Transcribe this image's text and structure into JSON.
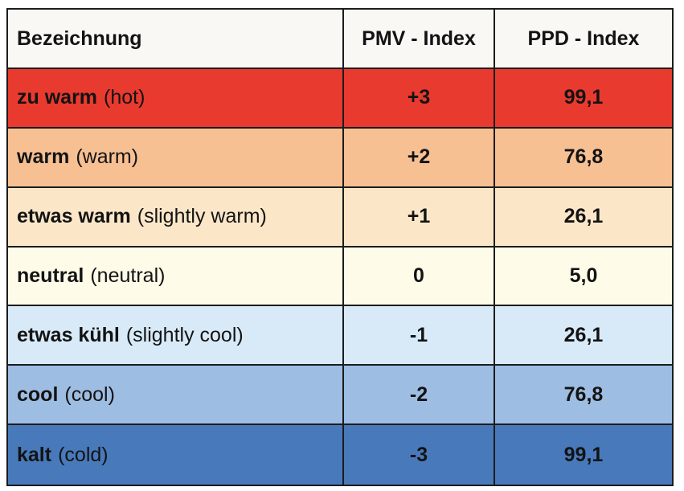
{
  "table": {
    "headers": {
      "name": "Bezeichnung",
      "pmv": "PMV - Index",
      "ppd": "PPD - Index"
    },
    "rows": [
      {
        "term": "zu warm",
        "translation": "(hot)",
        "pmv": "+3",
        "ppd": "99,1",
        "bg": "#e83a2e"
      },
      {
        "term": "warm",
        "translation": "(warm)",
        "pmv": "+2",
        "ppd": "76,8",
        "bg": "#f7c093"
      },
      {
        "term": "etwas warm",
        "translation": "(slightly warm)",
        "pmv": "+1",
        "ppd": "26,1",
        "bg": "#fbe7c8"
      },
      {
        "term": "neutral",
        "translation": "(neutral)",
        "pmv": "0",
        "ppd": "5,0",
        "bg": "#fefbe9"
      },
      {
        "term": "etwas kühl",
        "translation": "(slightly cool)",
        "pmv": "-1",
        "ppd": "26,1",
        "bg": "#d8eaf8"
      },
      {
        "term": "cool",
        "translation": "(cool)",
        "pmv": "-2",
        "ppd": "76,8",
        "bg": "#9dbde2"
      },
      {
        "term": "kalt",
        "translation": "(cold)",
        "pmv": "-3",
        "ppd": "99,1",
        "bg": "#4879bb"
      }
    ],
    "colors": {
      "border": "#1c1c1c",
      "header_bg": "#f9f8f5",
      "text": "#131313"
    }
  },
  "chart_data": {
    "type": "table",
    "columns": [
      "Bezeichnung",
      "PMV - Index",
      "PPD - Index"
    ],
    "rows": [
      [
        "zu warm (hot)",
        "+3",
        "99,1"
      ],
      [
        "warm (warm)",
        "+2",
        "76,8"
      ],
      [
        "etwas warm (slightly warm)",
        "+1",
        "26,1"
      ],
      [
        "neutral (neutral)",
        "0",
        "5,0"
      ],
      [
        "etwas kühl (slightly cool)",
        "-1",
        "26,1"
      ],
      [
        "cool (cool)",
        "-2",
        "76,8"
      ],
      [
        "kalt (cold)",
        "-3",
        "99,1"
      ]
    ],
    "row_colors": [
      "#e83a2e",
      "#f7c093",
      "#fbe7c8",
      "#fefbe9",
      "#d8eaf8",
      "#9dbde2",
      "#4879bb"
    ],
    "legend_position": "none",
    "grid": true
  }
}
